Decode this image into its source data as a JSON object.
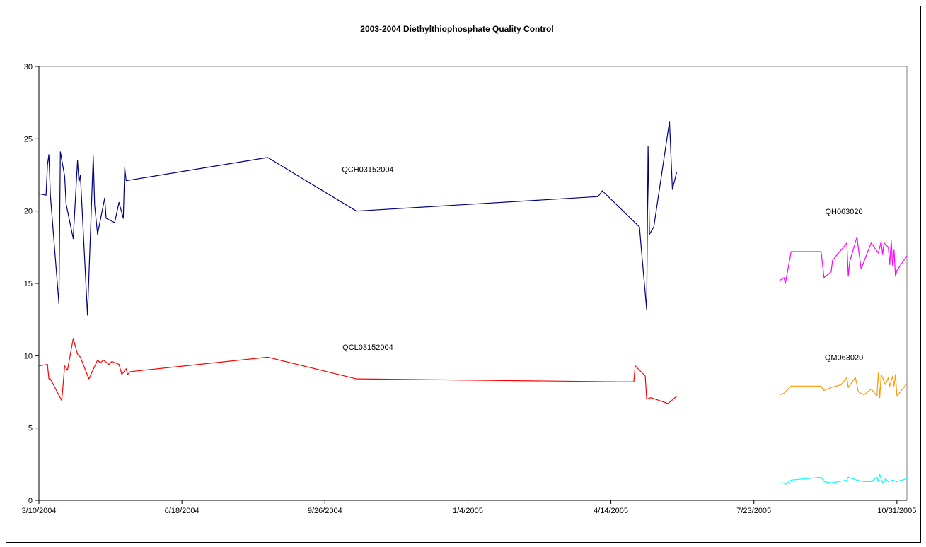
{
  "chart_data": {
    "type": "line",
    "title": "2003-2004 Diethylthiophosphate Quality Control",
    "xlabel": "",
    "ylabel": "",
    "ylim": [
      0,
      30
    ],
    "yticks": [
      0,
      5,
      10,
      15,
      20,
      25,
      30
    ],
    "xlim": [
      "2004-03-10",
      "2005-11-07"
    ],
    "xticks": [
      "3/10/2004",
      "6/18/2004",
      "9/26/2004",
      "1/4/2005",
      "4/14/2005",
      "7/23/2005",
      "10/31/2005"
    ],
    "grid": false,
    "legend": "none",
    "annotations": [
      {
        "text": "QCH03152004",
        "x": "2004-10-26",
        "y": 22.7
      },
      {
        "text": "QCL03152004",
        "x": "2004-10-26",
        "y": 10.4
      },
      {
        "text": "QH063020",
        "x": "2005-09-24",
        "y": 19.8
      },
      {
        "text": "QM063020",
        "x": "2005-09-24",
        "y": 9.7
      }
    ],
    "series": [
      {
        "color": "#000080",
        "points": [
          [
            "2004-03-10",
            21.2
          ],
          [
            "2004-03-15",
            21.1
          ],
          [
            "2004-03-16",
            23.2
          ],
          [
            "2004-03-17",
            23.9
          ],
          [
            "2004-03-18",
            21.1
          ],
          [
            "2004-03-24",
            13.6
          ],
          [
            "2004-03-25",
            24.1
          ],
          [
            "2004-03-28",
            22.4
          ],
          [
            "2004-03-29",
            20.5
          ],
          [
            "2004-04-03",
            18.1
          ],
          [
            "2004-04-06",
            23.5
          ],
          [
            "2004-04-07",
            22.0
          ],
          [
            "2004-04-08",
            22.5
          ],
          [
            "2004-04-13",
            12.8
          ],
          [
            "2004-04-17",
            23.8
          ],
          [
            "2004-04-18",
            20.4
          ],
          [
            "2004-04-20",
            18.4
          ],
          [
            "2004-04-25",
            20.9
          ],
          [
            "2004-04-26",
            19.5
          ],
          [
            "2004-05-02",
            19.2
          ],
          [
            "2004-05-05",
            20.6
          ],
          [
            "2004-05-08",
            19.5
          ],
          [
            "2004-05-09",
            23.0
          ],
          [
            "2004-05-10",
            22.1
          ],
          [
            "2004-08-17",
            23.7
          ],
          [
            "2004-10-18",
            20.0
          ],
          [
            "2005-04-05",
            21.0
          ],
          [
            "2005-04-08",
            21.4
          ],
          [
            "2005-05-04",
            18.9
          ],
          [
            "2005-05-05",
            17.7
          ],
          [
            "2005-05-09",
            13.2
          ],
          [
            "2005-05-10",
            24.5
          ],
          [
            "2005-05-11",
            18.4
          ],
          [
            "2005-05-14",
            18.9
          ],
          [
            "2005-05-25",
            26.2
          ],
          [
            "2005-05-27",
            21.5
          ],
          [
            "2005-05-30",
            22.7
          ]
        ]
      },
      {
        "color": "#ff0000",
        "points": [
          [
            "2004-03-10",
            9.3
          ],
          [
            "2004-03-16",
            9.4
          ],
          [
            "2004-03-17",
            8.4
          ],
          [
            "2004-03-18",
            8.4
          ],
          [
            "2004-03-26",
            6.9
          ],
          [
            "2004-03-28",
            9.3
          ],
          [
            "2004-03-30",
            9.0
          ],
          [
            "2004-04-03",
            11.2
          ],
          [
            "2004-04-06",
            10.1
          ],
          [
            "2004-04-08",
            9.9
          ],
          [
            "2004-04-14",
            8.4
          ],
          [
            "2004-04-20",
            9.7
          ],
          [
            "2004-04-22",
            9.5
          ],
          [
            "2004-04-24",
            9.7
          ],
          [
            "2004-04-28",
            9.4
          ],
          [
            "2004-04-30",
            9.6
          ],
          [
            "2004-05-05",
            9.4
          ],
          [
            "2004-05-07",
            8.7
          ],
          [
            "2004-05-10",
            9.1
          ],
          [
            "2004-05-11",
            8.7
          ],
          [
            "2004-05-13",
            8.9
          ],
          [
            "2004-08-17",
            9.9
          ],
          [
            "2004-10-18",
            8.4
          ],
          [
            "2005-04-19",
            8.2
          ],
          [
            "2005-04-30",
            8.2
          ],
          [
            "2005-05-01",
            9.3
          ],
          [
            "2005-05-08",
            8.6
          ],
          [
            "2005-05-09",
            7.0
          ],
          [
            "2005-05-12",
            7.1
          ],
          [
            "2005-05-24",
            6.7
          ],
          [
            "2005-05-30",
            7.2
          ]
        ]
      },
      {
        "color": "#ff00ff",
        "points": [
          [
            "2005-08-10",
            15.2
          ],
          [
            "2005-08-13",
            15.4
          ],
          [
            "2005-08-14",
            15.0
          ],
          [
            "2005-08-18",
            17.2
          ],
          [
            "2005-09-08",
            17.2
          ],
          [
            "2005-09-10",
            15.4
          ],
          [
            "2005-09-15",
            15.8
          ],
          [
            "2005-09-16",
            16.6
          ],
          [
            "2005-09-26",
            17.8
          ],
          [
            "2005-09-27",
            15.5
          ],
          [
            "2005-09-28",
            16.5
          ],
          [
            "2005-10-03",
            18.2
          ],
          [
            "2005-10-06",
            16.0
          ],
          [
            "2005-10-13",
            17.8
          ],
          [
            "2005-10-18",
            17.1
          ],
          [
            "2005-10-20",
            17.9
          ],
          [
            "2005-10-21",
            17.0
          ],
          [
            "2005-10-22",
            17.8
          ],
          [
            "2005-10-25",
            17.5
          ],
          [
            "2005-10-26",
            16.3
          ],
          [
            "2005-10-27",
            18.0
          ],
          [
            "2005-10-28",
            16.2
          ],
          [
            "2005-10-29",
            17.3
          ],
          [
            "2005-10-30",
            15.5
          ],
          [
            "2005-10-31",
            15.9
          ],
          [
            "2005-11-07",
            16.9
          ]
        ]
      },
      {
        "color": "#ff9900",
        "points": [
          [
            "2005-08-10",
            7.3
          ],
          [
            "2005-08-13",
            7.4
          ],
          [
            "2005-08-18",
            7.9
          ],
          [
            "2005-09-08",
            7.9
          ],
          [
            "2005-09-10",
            7.6
          ],
          [
            "2005-09-15",
            7.8
          ],
          [
            "2005-09-22",
            8.0
          ],
          [
            "2005-09-26",
            8.5
          ],
          [
            "2005-09-27",
            7.8
          ],
          [
            "2005-10-02",
            8.5
          ],
          [
            "2005-10-04",
            7.5
          ],
          [
            "2005-10-08",
            7.3
          ],
          [
            "2005-10-13",
            7.7
          ],
          [
            "2005-10-17",
            7.2
          ],
          [
            "2005-10-18",
            8.8
          ],
          [
            "2005-10-19",
            7.1
          ],
          [
            "2005-10-20",
            8.7
          ],
          [
            "2005-10-23",
            8.0
          ],
          [
            "2005-10-25",
            8.5
          ],
          [
            "2005-10-26",
            7.9
          ],
          [
            "2005-10-28",
            8.6
          ],
          [
            "2005-10-29",
            7.9
          ],
          [
            "2005-10-30",
            8.7
          ],
          [
            "2005-10-31",
            7.2
          ],
          [
            "2005-11-07",
            8.1
          ]
        ]
      },
      {
        "color": "#00ffff",
        "points": [
          [
            "2005-08-10",
            1.2
          ],
          [
            "2005-08-13",
            1.2
          ],
          [
            "2005-08-14",
            1.1
          ],
          [
            "2005-08-18",
            1.4
          ],
          [
            "2005-09-08",
            1.6
          ],
          [
            "2005-09-10",
            1.3
          ],
          [
            "2005-09-15",
            1.2
          ],
          [
            "2005-09-26",
            1.4
          ],
          [
            "2005-09-27",
            1.6
          ],
          [
            "2005-10-03",
            1.4
          ],
          [
            "2005-10-08",
            1.3
          ],
          [
            "2005-10-13",
            1.3
          ],
          [
            "2005-10-17",
            1.6
          ],
          [
            "2005-10-18",
            1.3
          ],
          [
            "2005-10-19",
            1.8
          ],
          [
            "2005-10-21",
            1.2
          ],
          [
            "2005-10-23",
            1.5
          ],
          [
            "2005-10-25",
            1.3
          ],
          [
            "2005-10-28",
            1.4
          ],
          [
            "2005-10-31",
            1.3
          ],
          [
            "2005-11-07",
            1.5
          ]
        ]
      }
    ]
  }
}
